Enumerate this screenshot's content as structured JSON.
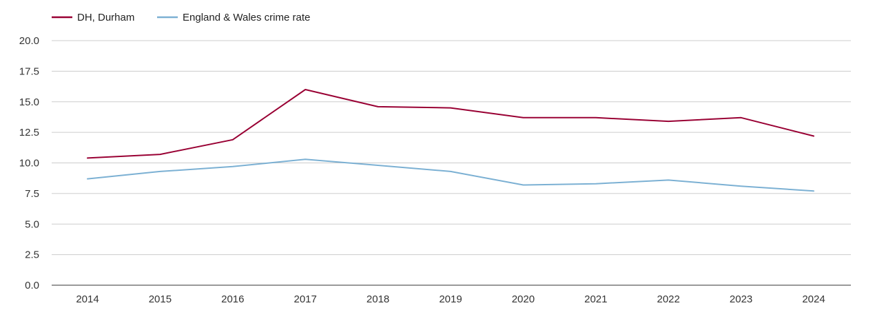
{
  "chart_data": {
    "type": "line",
    "title": "",
    "xlabel": "",
    "ylabel": "",
    "x": [
      "2014",
      "2015",
      "2016",
      "2017",
      "2018",
      "2019",
      "2020",
      "2021",
      "2022",
      "2023",
      "2024"
    ],
    "ylim": [
      0,
      20
    ],
    "yticks": [
      "0.0",
      "2.5",
      "5.0",
      "7.5",
      "10.0",
      "12.5",
      "15.0",
      "17.5",
      "20.0"
    ],
    "grid": true,
    "legend_position": "top-left",
    "series": [
      {
        "name": "DH, Durham",
        "color": "#990033",
        "values": [
          10.4,
          10.7,
          11.9,
          16.0,
          14.6,
          14.5,
          13.7,
          13.7,
          13.4,
          13.7,
          12.2
        ]
      },
      {
        "name": "England & Wales crime rate",
        "color": "#7bb0d3",
        "values": [
          8.7,
          9.3,
          9.7,
          10.3,
          9.8,
          9.3,
          8.2,
          8.3,
          8.6,
          8.1,
          7.7
        ]
      }
    ]
  }
}
